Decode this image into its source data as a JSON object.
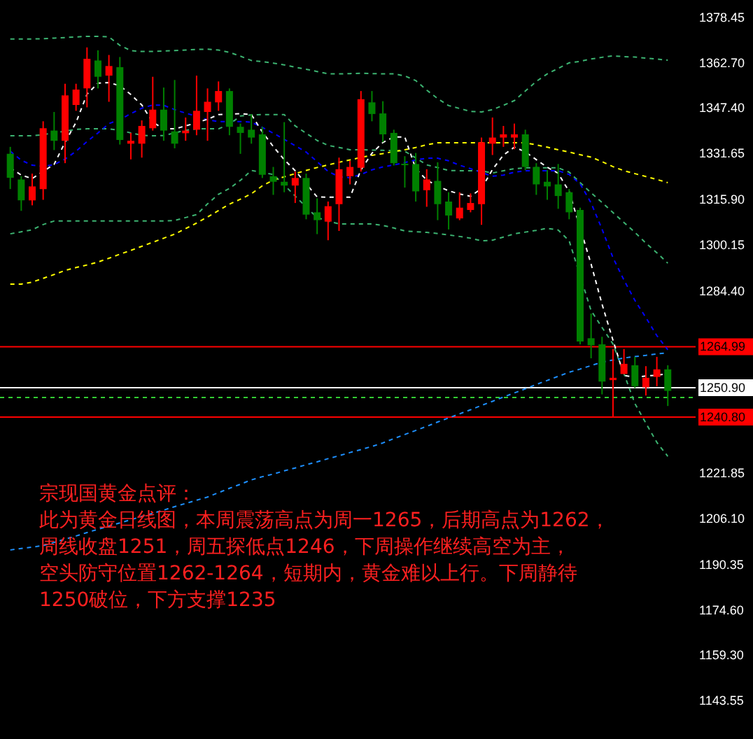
{
  "chart_data": {
    "type": "candlestick",
    "categories": [
      null,
      null,
      null,
      null,
      null,
      null,
      null,
      null,
      null,
      null,
      null,
      null,
      null,
      null,
      null,
      null,
      null,
      null,
      null,
      null,
      null,
      null,
      null,
      null,
      null,
      null,
      null,
      null,
      null,
      null,
      null,
      null,
      null,
      null,
      null,
      null,
      null,
      null,
      null,
      null,
      null,
      null,
      null,
      null,
      null,
      null,
      null,
      null,
      null,
      null,
      null,
      null,
      null,
      null,
      null,
      null,
      null,
      null,
      null,
      null,
      null
    ],
    "ohlc": [
      [
        1331.3,
        1333.7,
        1319.2,
        1323.1
      ],
      [
        1322.5,
        1323.6,
        1311.7,
        1315.3
      ],
      [
        1315.3,
        1324.5,
        1313.6,
        1320.1
      ],
      [
        1319.2,
        1342.5,
        1315.5,
        1340.1
      ],
      [
        1339.3,
        1345.7,
        1332.6,
        1335.8
      ],
      [
        1335.8,
        1355.4,
        1328.1,
        1351.4
      ],
      [
        1348.1,
        1355.4,
        1346.1,
        1353.4
      ],
      [
        1353.8,
        1367.9,
        1347.3,
        1364.0
      ],
      [
        1363.4,
        1366.9,
        1353.8,
        1357.8
      ],
      [
        1358.2,
        1365.3,
        1349.2,
        1361.5
      ],
      [
        1361.1,
        1364.6,
        1334.5,
        1336.1
      ],
      [
        1334.8,
        1338.5,
        1329.4,
        1335.8
      ],
      [
        1334.8,
        1342.8,
        1330.0,
        1340.9
      ],
      [
        1340.1,
        1357.8,
        1339.3,
        1346.5
      ],
      [
        1346.5,
        1354.1,
        1335.8,
        1339.3
      ],
      [
        1339.0,
        1356.7,
        1333.2,
        1334.8
      ],
      [
        1338.4,
        1343.8,
        1335.8,
        1339.3
      ],
      [
        1339.6,
        1358.2,
        1337.7,
        1346.1
      ],
      [
        1345.7,
        1353.8,
        1335.8,
        1349.2
      ],
      [
        1349.0,
        1356.2,
        1346.1,
        1352.9
      ],
      [
        1352.9,
        1353.8,
        1337.7,
        1340.6
      ],
      [
        1340.6,
        1341.7,
        1331.3,
        1338.5
      ],
      [
        1339.6,
        1344.9,
        1334.8,
        1336.9
      ],
      [
        1338.0,
        1340.6,
        1323.0,
        1324.1
      ],
      [
        1323.6,
        1326.8,
        1317.2,
        1321.7
      ],
      [
        1321.7,
        1342.2,
        1318.1,
        1320.4
      ],
      [
        1320.4,
        1325.2,
        1314.4,
        1323.0
      ],
      [
        1323.0,
        1324.5,
        1308.8,
        1310.4
      ],
      [
        1311.2,
        1316.0,
        1303.7,
        1308.5
      ],
      [
        1308.0,
        1314.9,
        1301.6,
        1313.3
      ],
      [
        1314.0,
        1330.0,
        1304.8,
        1326.0
      ],
      [
        1323.6,
        1328.9,
        1320.8,
        1326.8
      ],
      [
        1326.5,
        1352.9,
        1325.2,
        1350.1
      ],
      [
        1349.0,
        1352.9,
        1342.5,
        1345.0
      ],
      [
        1345.2,
        1349.4,
        1335.3,
        1338.0
      ],
      [
        1338.5,
        1339.6,
        1327.3,
        1328.1
      ],
      [
        1327.9,
        1330.5,
        1319.7,
        1327.4
      ],
      [
        1327.8,
        1331.6,
        1314.9,
        1318.4
      ],
      [
        1318.8,
        1326.0,
        1313.1,
        1322.5
      ],
      [
        1322.0,
        1328.4,
        1308.5,
        1314.0
      ],
      [
        1314.9,
        1318.1,
        1305.3,
        1310.1
      ],
      [
        1309.1,
        1318.1,
        1308.5,
        1312.8
      ],
      [
        1312.0,
        1317.7,
        1311.2,
        1314.4
      ],
      [
        1314.0,
        1336.9,
        1306.9,
        1335.3
      ],
      [
        1334.8,
        1343.8,
        1330.9,
        1336.9
      ],
      [
        1336.9,
        1340.9,
        1333.7,
        1338.0
      ],
      [
        1336.9,
        1341.7,
        1332.9,
        1338.0
      ],
      [
        1338.0,
        1339.6,
        1325.7,
        1326.8
      ],
      [
        1326.8,
        1328.1,
        1317.2,
        1320.8
      ],
      [
        1321.7,
        1325.7,
        1315.5,
        1320.1
      ],
      [
        1320.8,
        1327.8,
        1312.4,
        1316.8
      ],
      [
        1318.1,
        1319.2,
        1308.8,
        1311.2
      ],
      [
        1312.0,
        1312.8,
        1265.8,
        1266.8
      ],
      [
        1267.9,
        1276.4,
        1261.0,
        1265.5
      ],
      [
        1265.8,
        1268.4,
        1248.6,
        1253.0
      ],
      [
        1253.5,
        1264.2,
        1240.8,
        1254.3
      ],
      [
        1255.6,
        1264.2,
        1255.6,
        1259.1
      ],
      [
        1258.6,
        1261.5,
        1250.8,
        1251.4
      ],
      [
        1251.0,
        1258.3,
        1248.2,
        1254.3
      ],
      [
        1254.6,
        1261.5,
        1251.4,
        1257.2
      ],
      [
        1257.2,
        1258.6,
        1244.6,
        1249.8
      ]
    ],
    "colors": [
      "#008000",
      "#008000",
      "#ff0000",
      "#ff0000",
      "#008000",
      "#ff0000",
      "#ff0000",
      "#ff0000",
      "#008000",
      "#ff0000",
      "#008000",
      "#ff0000",
      "#ff0000",
      "#ff0000",
      "#008000",
      "#008000",
      "#ff0000",
      "#ff0000",
      "#ff0000",
      "#ff0000",
      "#008000",
      "#008000",
      "#008000",
      "#008000",
      "#008000",
      "#008000",
      "#ff0000",
      "#008000",
      "#008000",
      "#ff0000",
      "#ff0000",
      "#ff0000",
      "#ff0000",
      "#008000",
      "#008000",
      "#008000",
      "#008000",
      "#008000",
      "#ff0000",
      "#008000",
      "#008000",
      "#ff0000",
      "#ff0000",
      "#ff0000",
      "#ff0000",
      "#ff0000",
      "#ff0000",
      "#008000",
      "#008000",
      "#008000",
      "#008000",
      "#008000",
      "#008000",
      "#008000",
      "#008000",
      "#ff0000",
      "#ff0000",
      "#008000",
      "#ff0000",
      "#ff0000",
      "#008000"
    ],
    "series": [
      {
        "type": "line",
        "color": "#3cb371",
        "line_style": "dashed",
        "values": [
          1370.8,
          1370.8,
          1370.8,
          1370.9,
          1371.1,
          1371.3,
          1371.5,
          1371.7,
          1371.7,
          1371.5,
          1368.6,
          1366.8,
          1366.5,
          1366.5,
          1366.7,
          1366.8,
          1367.0,
          1367.2,
          1367.3,
          1367.0,
          1366.2,
          1364.9,
          1363.4,
          1363.0,
          1362.5,
          1361.9,
          1361.1,
          1360.4,
          1359.6,
          1358.8,
          1358.8,
          1358.9,
          1359.0,
          1358.9,
          1358.8,
          1358.8,
          1358.1,
          1356.5,
          1353.2,
          1350.3,
          1347.9,
          1346.9,
          1345.9,
          1345.7,
          1346.5,
          1348.0,
          1349.6,
          1352.9,
          1356.2,
          1358.8,
          1360.7,
          1362.6,
          1363.1,
          1363.9,
          1364.5,
          1365.0,
          1364.7,
          1364.6,
          1364.2,
          1363.9,
          1363.5
        ]
      },
      {
        "type": "line",
        "color": "#3cb371",
        "line_style": "dashed",
        "values": [
          1337.5,
          1337.5,
          1337.5,
          1337.9,
          1338.5,
          1339.1,
          1339.7,
          1339.9,
          1339.9,
          1339.9,
          1339.4,
          1338.5,
          1337.7,
          1337.5,
          1337.6,
          1338.5,
          1339.4,
          1339.9,
          1339.9,
          1339.9,
          1341.5,
          1344.3,
          1344.7,
          1344.8,
          1344.8,
          1344.8,
          1340.9,
          1338.4,
          1335.9,
          1334.2,
          1333.5,
          1332.7,
          1332.7,
          1332.6,
          1332.5,
          1332.4,
          1332.2,
          1329.9,
          1327.5,
          1326.6,
          1325.6,
          1325.5,
          1325.5,
          1325.5,
          1324.7,
          1325.5,
          1326.2,
          1326.5,
          1326.5,
          1326.5,
          1326.5,
          1325.0,
          1321.4,
          1317.9,
          1314.6,
          1311.1,
          1307.7,
          1304.3,
          1300.6,
          1297.3,
          1293.7
        ]
      },
      {
        "type": "line",
        "color": "#3cb371",
        "line_style": "dashed",
        "values": [
          1303.8,
          1304.5,
          1305.2,
          1307.0,
          1308.2,
          1308.2,
          1308.2,
          1308.2,
          1308.2,
          1308.2,
          1308.2,
          1308.2,
          1308.2,
          1308.2,
          1308.2,
          1308.4,
          1309.4,
          1310.4,
          1314.1,
          1317.4,
          1319.4,
          1322.2,
          1325.6,
          null,
          1324.2,
          1320.6,
          1316.8,
          1313.0,
          1309.4,
          1308.2,
          1307.2,
          1307.2,
          1307.2,
          1307.2,
          1306.7,
          1305.8,
          1304.8,
          1304.5,
          1304.3,
          1303.9,
          1303.4,
          1302.9,
          1302.3,
          1301.4,
          1301.6,
          1302.7,
          1303.8,
          1304.4,
          1305.0,
          1305.7,
          1305.1,
          1301.4,
          null,
          1277.4,
          1271.6,
          1265.9,
          1255.7,
          1245.4,
          1238.7,
          1232.1,
          1227.3
        ]
      },
      {
        "type": "line",
        "color": "#ffff00",
        "line_style": "dashed",
        "values": [
          1286.5,
          1286.5,
          1287.2,
          1288.5,
          1289.8,
          1291.2,
          1292.2,
          1293.1,
          1294.1,
          1295.4,
          1296.8,
          1298.1,
          1299.5,
          1300.9,
          1302.3,
          1303.7,
          1305.6,
          1307.5,
          1309.6,
          1311.8,
          1314.0,
          1315.7,
          1317.6,
          1320.3,
          1322.3,
          1323.4,
          1324.5,
          1325.6,
          1326.6,
          1327.5,
          1328.4,
          1329.2,
          1330.1,
          1330.8,
          1331.4,
          1332.1,
          1332.7,
          1333.5,
          1334.4,
          1335.1,
          1335.1,
          1335.1,
          1335.1,
          null,
          1335.1,
          1335.1,
          1335.1,
          1335.1,
          1334.4,
          1333.6,
          1332.7,
          1331.9,
          1331.0,
          1330.2,
          1328.6,
          1326.9,
          1325.5,
          1324.5,
          1323.5,
          1322.5,
          1321.4
        ]
      },
      {
        "type": "line",
        "color": "#1e90ff",
        "line_style": "dashed",
        "values": [
          1195.1,
          1195.6,
          1196.1,
          1196.6,
          1197.7,
          1198.8,
          1199.9,
          1201.1,
          1202.2,
          1203.3,
          1204.4,
          1205.5,
          1206.6,
          1207.7,
          1208.8,
          1210.0,
          1211.1,
          1212.2,
          1213.3,
          1214.8,
          1216.3,
          1217.7,
          1219.2,
          1220.3,
          1221.2,
          1222.3,
          1223.3,
          1224.4,
          1225.4,
          1226.5,
          1227.5,
          1228.6,
          1229.6,
          1230.7,
          1231.9,
          1233.4,
          1234.8,
          1236.2,
          1237.6,
          1239.1,
          1240.5,
          1241.9,
          1243.3,
          1244.8,
          1246.2,
          1247.7,
          1249.1,
          1250.5,
          1252.0,
          1253.4,
          1254.8,
          1256.2,
          1257.3,
          1258.5,
          1259.7,
          1260.4,
          1261.1,
          1261.6,
          1262.0,
          1262.5,
          1262.9
        ]
      },
      {
        "type": "line",
        "color": "#0000ff",
        "line_style": "dashed",
        "values": [
          1332.2,
          1329.1,
          1327.4,
          1327.0,
          1327.6,
          1329.5,
          1332.2,
          1335.5,
          1338.5,
          1341.7,
          1343.1,
          1345.1,
          1347.0,
          1348.1,
          1348.0,
          1346.5,
          1345.3,
          1344.2,
          1343.0,
          1342.4,
          1342.4,
          1342.4,
          1342.2,
          1340.4,
          1338.4,
          1336.3,
          1334.1,
          1331.9,
          1328.6,
          1325.3,
          1323.4,
          1323.1,
          1324.2,
          1325.8,
          1326.8,
          1327.5,
          1328.3,
          1329.2,
          1329.8,
          1329.8,
          1328.9,
          1327.4,
          1326.2,
          1324.9,
          1323.6,
          1324.0,
          1325.0,
          1325.5,
          1325.5,
          1325.5,
          1325.5,
          1324.2,
          1321.0,
          1314.4,
          1305.4,
          1295.6,
          1287.9,
          1280.9,
          1275.0,
          1268.8,
          1263.9
        ]
      },
      {
        "type": "line",
        "color": "#ffffff",
        "line_style": "dashed",
        "values": [
          1326.5,
          1324.0,
          1322.8,
          1325.3,
          1327.7,
          1335.3,
          1342.1,
          1351.8,
          1355.6,
          1355.8,
          1354.7,
          1351.7,
          1348.1,
          1342.2,
          1339.9,
          1339.9,
          1340.9,
          1342.0,
          1343.2,
          1344.8,
          null,
          1345.1,
          1344.8,
          1338.8,
          1333.8,
          1329.3,
          1325.5,
          null,
          1316.5,
          1316.4,
          null,
          1316.4,
          1325.8,
          1331.5,
          1335.2,
          1337.1,
          1337.1,
          1326.2,
          1322.3,
          1320.2,
          1318.6,
          1317.5,
          1316.7,
          1319.4,
          1325.9,
          1330.9,
          1333.6,
          1332.0,
          1329.3,
          1326.7,
          1324.6,
          1318.3,
          null,
          1293.4,
          1279.6,
          1267.2,
          1255.1,
          1254.5,
          1254.9,
          1255.2,
          1255.7
        ]
      }
    ],
    "ylim": [
      1130.1,
      1384.2
    ],
    "yticks": [
      1378.45,
      {
        "value": 1362.7,
        "label": "1362.70"
      },
      {
        "value": 1347.4,
        "label": "1347.40"
      },
      1331.65,
      {
        "value": 1315.9,
        "label": "1315.90"
      },
      1300.15,
      {
        "value": 1284.4,
        "label": "1284.40"
      },
      1221.85,
      {
        "value": 1206.1,
        "label": "1206.10"
      },
      1190.35,
      {
        "value": 1174.6,
        "label": "1174.60"
      },
      {
        "value": 1159.3,
        "label": "1159.30"
      },
      1143.55
    ],
    "tick_labels": "y",
    "ref_lines": [
      {
        "axis": "y",
        "value": 1264.99,
        "label": "1264.99",
        "color": "#ff0000"
      },
      {
        "axis": "y",
        "value": 1247.5,
        "color": "#32cd32",
        "line_style": "dashed"
      },
      {
        "axis": "y",
        "value": 1250.9,
        "label": "1250.90",
        "color": "#ffffff"
      },
      {
        "axis": "y",
        "value": 1240.8,
        "label": "1240.80",
        "color": "#ff0000"
      }
    ],
    "annotations": [
      "宗现国黄金点评：",
      "此为黄金日线图，本周震荡高点为周一1265，后期高点为1262，",
      "周线收盘1251，周五探低点1246，下周操作继续高空为主，",
      "空头防守位置1262-1264，短期内，黄金难以上行。下周静待",
      "1250破位，下方支撑1235"
    ]
  }
}
